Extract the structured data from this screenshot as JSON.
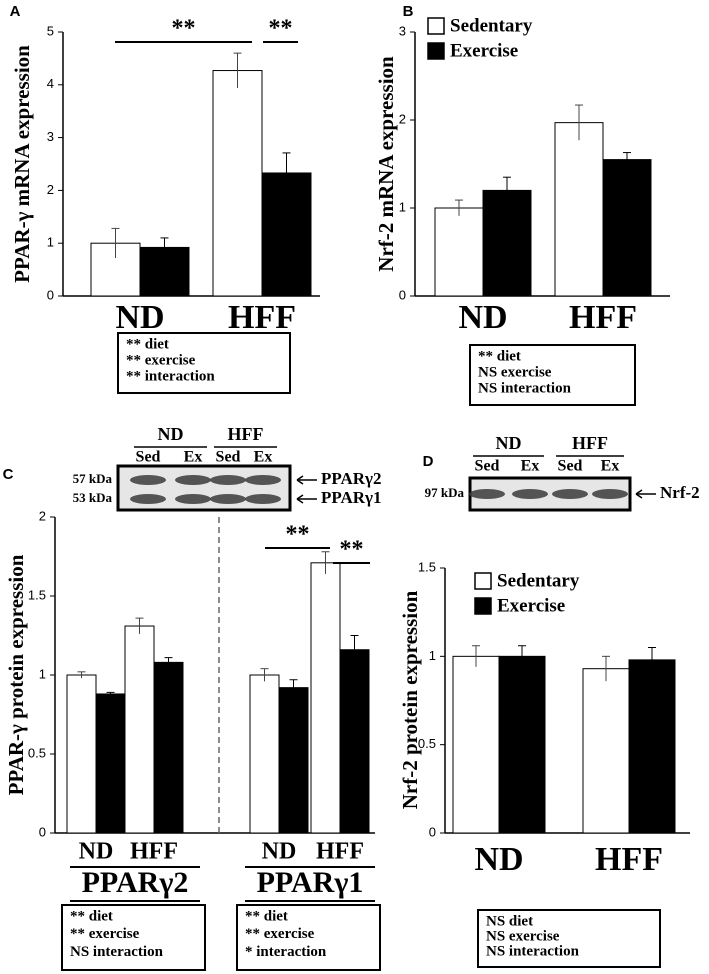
{
  "chart_data": [
    {
      "type": "bar",
      "panel": "A",
      "y_label": "PPAR-γ mRNA expression",
      "categories": [
        "ND",
        "HFF"
      ],
      "ylim": [
        0,
        5
      ],
      "yticks": [
        0,
        1,
        2,
        3,
        4,
        5
      ],
      "series": [
        {
          "color": "#ffffff",
          "values": [
            1.0,
            4.27
          ],
          "errors": [
            0.28,
            0.33
          ]
        },
        {
          "color": "#000000",
          "values": [
            0.92,
            2.33
          ],
          "errors": [
            0.18,
            0.38
          ]
        }
      ],
      "significance": [
        "**",
        "**"
      ],
      "stats": [
        [
          "** diet",
          "** exercise",
          "** interaction"
        ]
      ]
    },
    {
      "type": "bar",
      "panel": "B",
      "y_label": "Nrf-2 mRNA expression",
      "categories": [
        "ND",
        "HFF"
      ],
      "ylim": [
        0,
        3
      ],
      "yticks": [
        0,
        1,
        2,
        3
      ],
      "series": [
        {
          "name": "Sedentary",
          "color": "#ffffff",
          "values": [
            1.0,
            1.97
          ],
          "errors": [
            0.09,
            0.2
          ]
        },
        {
          "name": "Exercise",
          "color": "#000000",
          "values": [
            1.2,
            1.55
          ],
          "errors": [
            0.15,
            0.08
          ]
        }
      ],
      "legend": "upper left",
      "stats": [
        [
          "** diet",
          "NS exercise",
          "NS interaction"
        ]
      ]
    },
    {
      "type": "bar",
      "panel": "C",
      "y_label": "PPAR-γ protein expression",
      "categories": [
        "ND",
        "HFF",
        "ND",
        "HFF"
      ],
      "groups": [
        "PPARγ2",
        "PPARγ1"
      ],
      "ylim": [
        0,
        2
      ],
      "yticks": [
        0,
        0.5,
        1,
        1.5,
        2
      ],
      "series": [
        {
          "color": "#ffffff",
          "values": [
            1.0,
            1.31,
            1.0,
            1.71
          ],
          "errors": [
            0.02,
            0.05,
            0.04,
            0.07
          ]
        },
        {
          "color": "#000000",
          "values": [
            0.88,
            1.08,
            0.92,
            1.16
          ],
          "errors": [
            0.01,
            0.03,
            0.05,
            0.09
          ]
        }
      ],
      "significance": [
        "**",
        "**"
      ],
      "blot": {
        "groups": [
          "ND",
          "HFF"
        ],
        "lanes": [
          "Sed",
          "Ex",
          "Sed",
          "Ex"
        ],
        "bands": [
          "57 kDa",
          "53 kDa"
        ],
        "targets": [
          "PPARγ2",
          "PPARγ1"
        ]
      },
      "stats": [
        [
          "** diet",
          "** exercise",
          "NS interaction"
        ],
        [
          "** diet",
          "** exercise",
          "* interaction"
        ]
      ]
    },
    {
      "type": "bar",
      "panel": "D",
      "y_label": "Nrf-2 protein expression",
      "categories": [
        "ND",
        "HFF"
      ],
      "ylim": [
        0,
        1.5
      ],
      "yticks": [
        0,
        0.5,
        1,
        1.5
      ],
      "series": [
        {
          "name": "Sedentary",
          "color": "#ffffff",
          "values": [
            1.0,
            0.93
          ],
          "errors": [
            0.06,
            0.07
          ]
        },
        {
          "name": "Exercise",
          "color": "#000000",
          "values": [
            1.0,
            0.98
          ],
          "errors": [
            0.06,
            0.07
          ]
        }
      ],
      "legend": "upper left",
      "blot": {
        "groups": [
          "ND",
          "HFF"
        ],
        "lanes": [
          "Sed",
          "Ex",
          "Sed",
          "Ex"
        ],
        "bands": [
          "97 kDa"
        ],
        "targets": [
          "Nrf-2"
        ]
      },
      "stats": [
        [
          "NS diet",
          "NS exercise",
          "NS interaction"
        ]
      ]
    }
  ]
}
